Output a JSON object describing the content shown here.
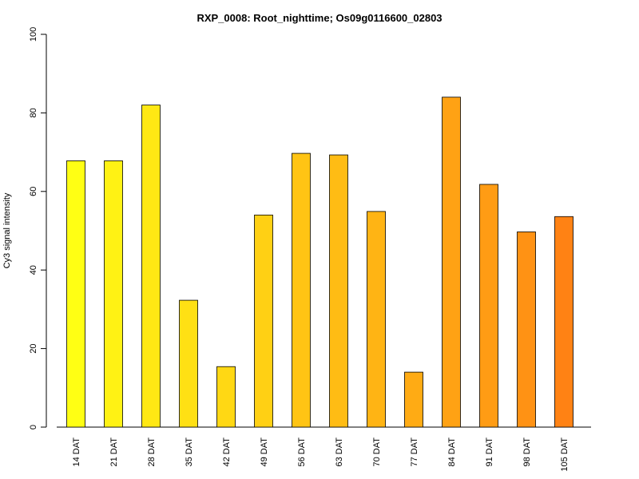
{
  "chart_data": {
    "type": "bar",
    "title": "RXP_0008: Root_nighttime; Os09g0116600_02803",
    "xlabel": "",
    "ylabel": "Cy3 signal intensity",
    "ylim": [
      0,
      100
    ],
    "yticks": [
      0,
      20,
      40,
      60,
      80,
      100
    ],
    "categories": [
      "14 DAT",
      "21 DAT",
      "28 DAT",
      "35 DAT",
      "42 DAT",
      "49 DAT",
      "56 DAT",
      "63 DAT",
      "70 DAT",
      "77 DAT",
      "84 DAT",
      "91 DAT",
      "98 DAT",
      "105 DAT"
    ],
    "values": [
      67.8,
      67.8,
      82,
      32.3,
      15.4,
      54,
      69.7,
      69.3,
      54.9,
      14,
      84,
      61.8,
      49.7,
      53.6
    ],
    "colors": [
      "#FFFF14",
      "#FFF214",
      "#FFE814",
      "#FFE014",
      "#FFD814",
      "#FFD014",
      "#FFC414",
      "#FFBC14",
      "#FFB414",
      "#FFAB14",
      "#FFA214",
      "#FF9C14",
      "#FF9214",
      "#FF8214"
    ],
    "grid": false,
    "legend": "none"
  }
}
